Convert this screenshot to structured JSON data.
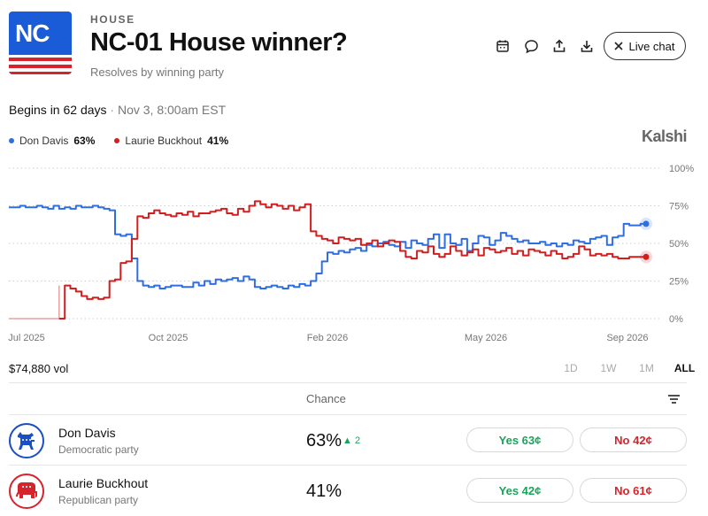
{
  "header": {
    "logo_text": "NC",
    "category": "HOUSE",
    "title": "NC-01 House winner?",
    "subtitle": "Resolves by winning party",
    "live_chat_label": "Live chat",
    "icons": [
      "calendar-icon",
      "comment-icon",
      "share-icon",
      "download-icon"
    ]
  },
  "status": {
    "begins": "Begins in 62 days",
    "separator": "·",
    "date": "Nov 3, 8:00am EST"
  },
  "brand": "Kalshi",
  "colors": {
    "blue": "#2f6ee0",
    "red": "#d11f1f",
    "green": "#1ba35a",
    "logo_blue": "#1a5bd8"
  },
  "chart_data": {
    "type": "line",
    "x_ticks": [
      "Jul 2025",
      "Oct 2025",
      "Feb 2026",
      "May 2026",
      "Sep 2026"
    ],
    "y_ticks": [
      "100%",
      "75%",
      "50%",
      "25%",
      "0%"
    ],
    "ylim": [
      0,
      100
    ],
    "grid": true,
    "legend_position": "top-left",
    "series": [
      {
        "name": "Don Davis",
        "color": "#2f6ee0",
        "last": "63%",
        "values": [
          74,
          74,
          75,
          74,
          74,
          75,
          74,
          73,
          75,
          73,
          74,
          73,
          75,
          74,
          74,
          75,
          74,
          73,
          72,
          56,
          55,
          56,
          40,
          25,
          22,
          21,
          22,
          20,
          21,
          22,
          22,
          21,
          21,
          24,
          22,
          25,
          23,
          26,
          25,
          26,
          27,
          25,
          28,
          26,
          21,
          20,
          21,
          22,
          21,
          20,
          22,
          21,
          23,
          22,
          25,
          30,
          38,
          44,
          43,
          45,
          44,
          46,
          47,
          45,
          49,
          48,
          50,
          51,
          49,
          48,
          51,
          47,
          52,
          50,
          49,
          53,
          56,
          47,
          56,
          50,
          49,
          53,
          45,
          50,
          55,
          54,
          49,
          52,
          57,
          55,
          53,
          51,
          52,
          50,
          50,
          51,
          49,
          50,
          48,
          50,
          49,
          52,
          51,
          50,
          53,
          54,
          55,
          49,
          54,
          55,
          63,
          62,
          62,
          63,
          63
        ]
      },
      {
        "name": "Laurie Buckhout",
        "color": "#d11f1f",
        "last": "41%",
        "values": [
          0,
          0,
          0,
          0,
          0,
          0,
          0,
          0,
          0,
          0,
          22,
          20,
          18,
          15,
          13,
          14,
          13,
          14,
          25,
          26,
          37,
          38,
          53,
          68,
          67,
          70,
          72,
          70,
          69,
          68,
          70,
          69,
          71,
          68,
          70,
          70,
          71,
          72,
          73,
          70,
          69,
          73,
          71,
          75,
          78,
          76,
          74,
          76,
          75,
          73,
          75,
          72,
          74,
          76,
          58,
          55,
          53,
          52,
          50,
          54,
          53,
          52,
          53,
          49,
          50,
          52,
          48,
          50,
          52,
          51,
          45,
          41,
          40,
          45,
          44,
          48,
          43,
          41,
          43,
          48,
          45,
          42,
          44,
          46,
          42,
          47,
          46,
          44,
          45,
          47,
          43,
          45,
          42,
          46,
          45,
          44,
          42,
          45,
          43,
          40,
          41,
          43,
          48,
          46,
          42,
          43,
          42,
          43,
          41,
          40,
          40,
          41,
          41,
          41,
          41
        ]
      }
    ]
  },
  "volume": "$74,880 vol",
  "ranges": [
    "1D",
    "1W",
    "1M",
    "ALL"
  ],
  "selected_range": "ALL",
  "table": {
    "chance_header": "Chance",
    "rows": [
      {
        "name": "Don Davis",
        "party": "Democratic party",
        "chance": "63%",
        "change": "▲ 2",
        "yes": "Yes 63¢",
        "no": "No 42¢",
        "icon": "donkey-icon"
      },
      {
        "name": "Laurie Buckhout",
        "party": "Republican party",
        "chance": "41%",
        "change": "",
        "yes": "Yes 42¢",
        "no": "No 61¢",
        "icon": "elephant-icon"
      }
    ]
  }
}
